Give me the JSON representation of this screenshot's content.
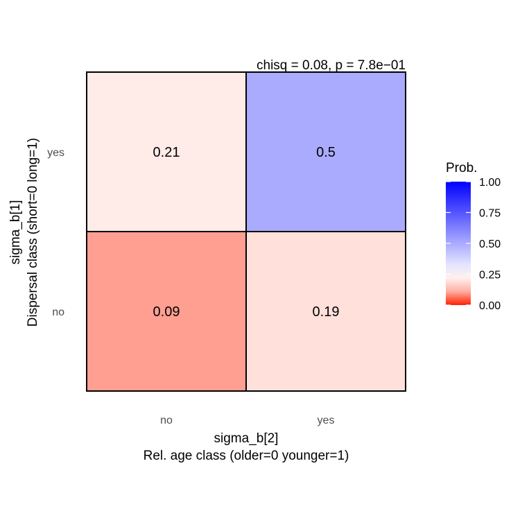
{
  "chart_data": {
    "type": "heatmap",
    "annotation": "chisq = 0.08, p = 7.8e−01",
    "x_categories": [
      "no",
      "yes"
    ],
    "y_categories": [
      "no",
      "yes"
    ],
    "cells": [
      {
        "x": "no",
        "y": "yes",
        "value": 0.21,
        "label": "0.21"
      },
      {
        "x": "yes",
        "y": "yes",
        "value": 0.5,
        "label": "0.5"
      },
      {
        "x": "no",
        "y": "no",
        "value": 0.09,
        "label": "0.09"
      },
      {
        "x": "yes",
        "y": "no",
        "value": 0.19,
        "label": "0.19"
      }
    ],
    "xlabel_line1": "sigma_b[2]",
    "xlabel_line2": "Rel. age class (older=0 younger=1)",
    "ylabel_line1": "sigma_b[1]",
    "ylabel_line2": "Dispersal class (short=0 long=1)",
    "legend": {
      "title": "Prob.",
      "ticks": [
        "1.00",
        "0.75",
        "0.50",
        "0.25",
        "0.00"
      ],
      "tick_values": [
        1.0,
        0.75,
        0.5,
        0.25,
        0.0
      ],
      "range": [
        0,
        1
      ],
      "low_color": "#ff2000",
      "mid_color": "#ffffff",
      "high_color": "#0000ff",
      "placement": "right"
    }
  }
}
